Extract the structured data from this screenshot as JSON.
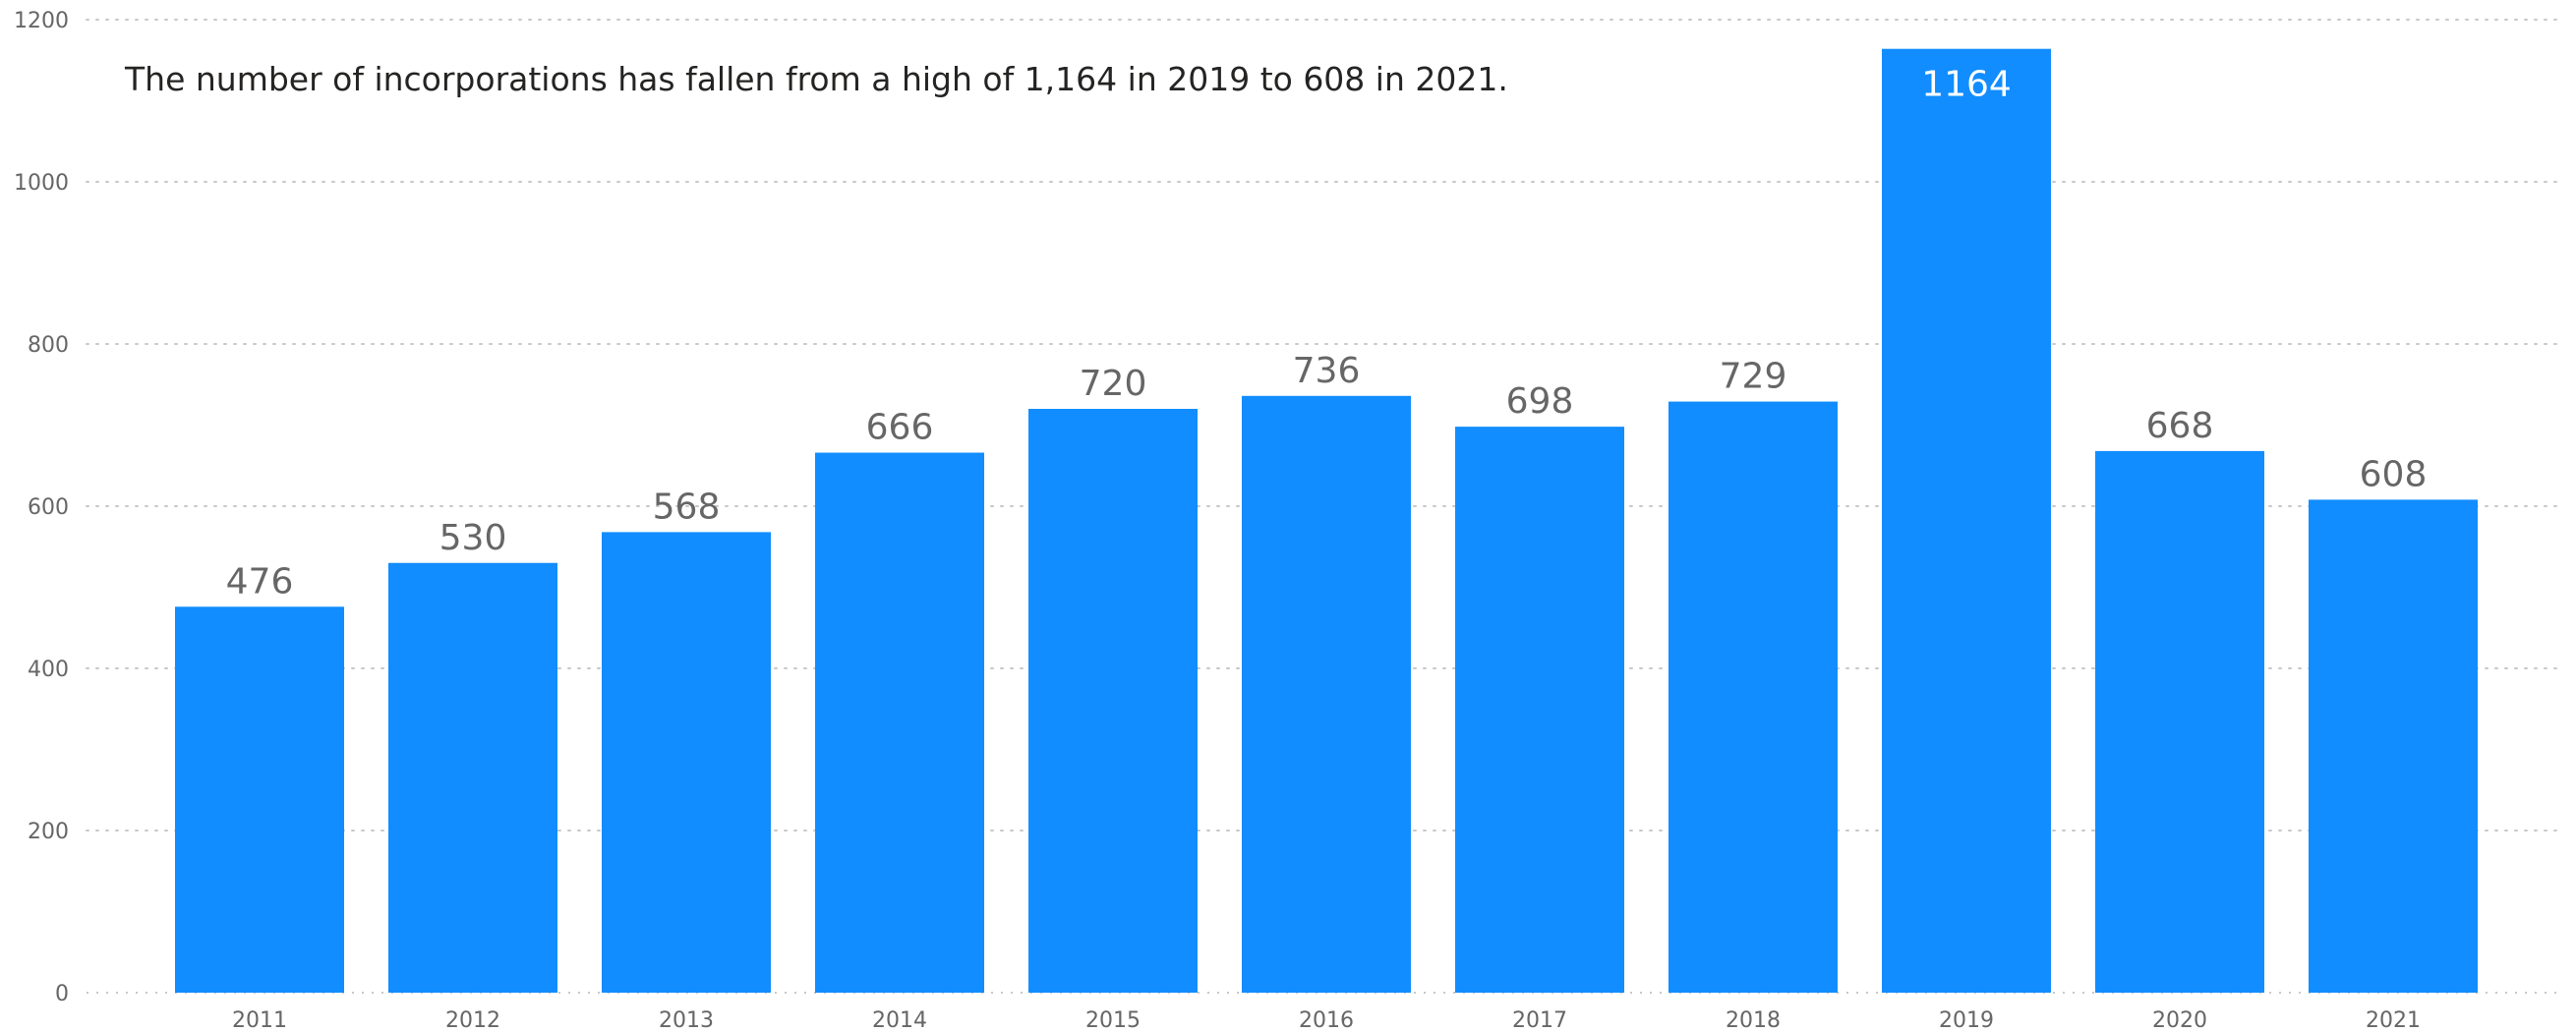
{
  "chart_data": {
    "type": "bar",
    "title": "",
    "xlabel": "",
    "ylabel": "",
    "categories": [
      "2011",
      "2012",
      "2013",
      "2014",
      "2015",
      "2016",
      "2017",
      "2018",
      "2019",
      "2020",
      "2021"
    ],
    "values": [
      476,
      530,
      568,
      666,
      720,
      736,
      698,
      729,
      1164,
      668,
      608
    ],
    "data_labels": [
      "476",
      "530",
      "568",
      "666",
      "720",
      "736",
      "698",
      "729",
      "1164",
      "668",
      "608"
    ],
    "ylim": [
      0,
      1200
    ],
    "yticks": [
      0,
      200,
      400,
      600,
      800,
      1000,
      1200
    ],
    "ytick_labels": [
      "0",
      "200",
      "400",
      "600",
      "800",
      "1000",
      "1200"
    ],
    "grid": true,
    "annotation": "The number of incorporations has fallen from a high of 1,164 in 2019 to 608 in 2021.",
    "bar_color": "#118DFF",
    "label_color": "#666666",
    "label_inside_color": "#FFFFFF"
  }
}
